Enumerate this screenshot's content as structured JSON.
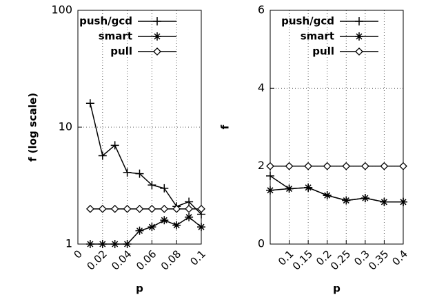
{
  "chart_data": [
    {
      "type": "line",
      "ylabel": "f (log scale)",
      "xlabel": "p",
      "yscale": "log",
      "x": [
        0.01,
        0.02,
        0.03,
        0.04,
        0.05,
        0.06,
        0.07,
        0.08,
        0.09,
        0.1
      ],
      "xlim": [
        0,
        0.1
      ],
      "xticks": [
        0,
        0.02,
        0.04,
        0.06,
        0.08,
        0.1
      ],
      "ylim": [
        1,
        100
      ],
      "yticks": [
        1,
        10,
        100
      ],
      "grid": true,
      "legend": "upper right",
      "series": [
        {
          "name": "push/gcd",
          "color": "#000000",
          "marker": "plus",
          "values": [
            16,
            5.7,
            7,
            4.1,
            4.0,
            3.2,
            3.0,
            2.1,
            2.3,
            1.8
          ]
        },
        {
          "name": "smart",
          "color": "#000000",
          "marker": "star",
          "values": [
            1,
            1,
            1,
            1,
            1.3,
            1.4,
            1.6,
            1.45,
            1.7,
            1.4
          ]
        },
        {
          "name": "pull",
          "color": "#000000",
          "marker": "diamond",
          "values": [
            2,
            2,
            2,
            2,
            2,
            2,
            2,
            2,
            2,
            2
          ]
        }
      ]
    },
    {
      "type": "line",
      "ylabel": "f",
      "xlabel": "p",
      "x": [
        0.05,
        0.1,
        0.15,
        0.2,
        0.25,
        0.3,
        0.35,
        0.4
      ],
      "xlim": [
        0.05,
        0.4
      ],
      "xticks": [
        0.1,
        0.15,
        0.2,
        0.25,
        0.3,
        0.35,
        0.4
      ],
      "ylim": [
        0,
        6
      ],
      "yticks": [
        0,
        2,
        4,
        6
      ],
      "grid": true,
      "legend": "upper right",
      "series": [
        {
          "name": "push/gcd",
          "color": "#000000",
          "marker": "plus",
          "values": [
            1.75,
            1.42,
            1.45,
            1.25,
            1.12,
            1.18,
            1.08,
            1.08
          ]
        },
        {
          "name": "smart",
          "color": "#000000",
          "marker": "star",
          "values": [
            1.38,
            1.42,
            1.45,
            1.25,
            1.12,
            1.18,
            1.08,
            1.08
          ]
        },
        {
          "name": "pull",
          "color": "#000000",
          "marker": "diamond",
          "values": [
            2,
            2,
            2,
            2,
            2,
            2,
            2,
            2
          ]
        }
      ]
    }
  ]
}
